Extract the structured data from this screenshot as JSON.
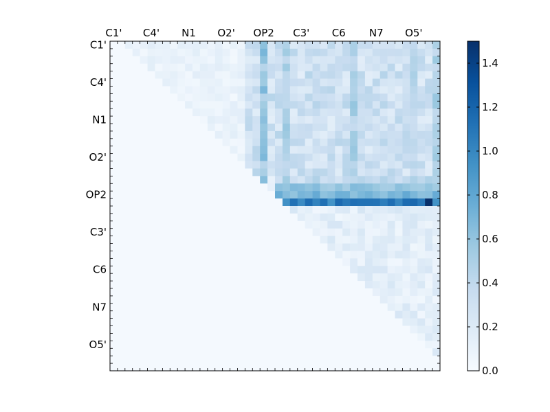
{
  "chart_data": {
    "type": "heatmap",
    "title": "",
    "xlabel": "",
    "ylabel": "",
    "grid_size": 44,
    "tick_labels": [
      "C1'",
      "C4'",
      "N1",
      "O2'",
      "OP2",
      "C3'",
      "C6",
      "N7",
      "O5'"
    ],
    "x_tick_labels_position": "top",
    "colormap": "Blues",
    "color_stops": [
      "#f7fbff",
      "#deebf7",
      "#c6dbef",
      "#9ecae1",
      "#6baed6",
      "#4292c6",
      "#2171b5",
      "#08519c",
      "#08306b"
    ],
    "colorbar": {
      "range": [
        0,
        1.5
      ],
      "tick_values": [
        0.0,
        0.2,
        0.4,
        0.6,
        0.8,
        1.0,
        1.2,
        1.4
      ],
      "tick_labels": [
        "0.0",
        "0.2",
        "0.4",
        "0.6",
        "0.8",
        "1.0",
        "1.2",
        "1.4"
      ],
      "placement": "right"
    },
    "structure": {
      "upper_triangle_only": true,
      "background_value": 0.02,
      "block_row_start": 18,
      "block_col_start": 22,
      "strong_rows": [
        {
          "row": 21,
          "value": 1.15
        },
        {
          "row": 20,
          "value": 0.75
        },
        {
          "row": 19,
          "value": 0.65
        }
      ],
      "strong_cols": [
        {
          "col": 20,
          "value": 0.7
        },
        {
          "col": 23,
          "value": 0.62
        },
        {
          "col": 32,
          "value": 0.6
        },
        {
          "col": 40,
          "value": 0.55
        },
        {
          "col": 43,
          "value": 0.58
        }
      ],
      "peak": {
        "row": 21,
        "col": 42,
        "value": 1.5
      }
    }
  }
}
